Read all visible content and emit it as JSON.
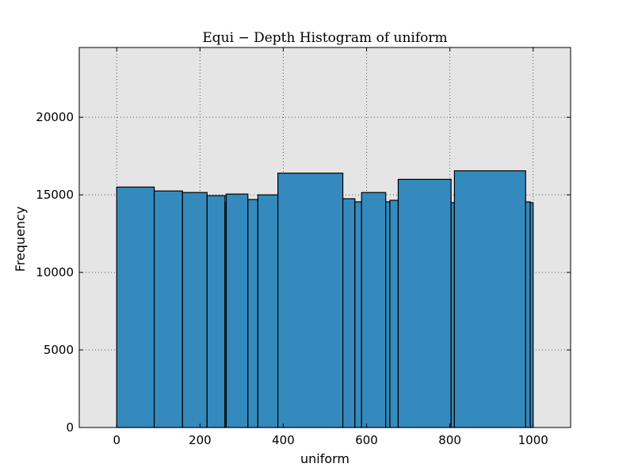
{
  "chart_data": {
    "type": "bar",
    "title": "Equi − Depth Histogram of uniform",
    "xlabel": "uniform",
    "ylabel": "Frequency",
    "xlim": [
      -90,
      1090
    ],
    "ylim": [
      0,
      24500
    ],
    "xticks": [
      0,
      200,
      400,
      600,
      800,
      1000
    ],
    "yticks": [
      0,
      5000,
      10000,
      15000,
      20000
    ],
    "grid": true,
    "bar_color": "#348abd",
    "background_color": "#e5e5e5",
    "bins": [
      {
        "x0": 0,
        "x1": 90,
        "value": 15500
      },
      {
        "x0": 90,
        "x1": 158,
        "value": 15250
      },
      {
        "x0": 158,
        "x1": 217,
        "value": 15150
      },
      {
        "x0": 217,
        "x1": 260,
        "value": 14950
      },
      {
        "x0": 260,
        "x1": 263,
        "value": 14500
      },
      {
        "x0": 263,
        "x1": 315,
        "value": 15050
      },
      {
        "x0": 315,
        "x1": 339,
        "value": 14700
      },
      {
        "x0": 339,
        "x1": 387,
        "value": 15000
      },
      {
        "x0": 387,
        "x1": 543,
        "value": 16400
      },
      {
        "x0": 543,
        "x1": 572,
        "value": 14750
      },
      {
        "x0": 572,
        "x1": 588,
        "value": 14550
      },
      {
        "x0": 588,
        "x1": 646,
        "value": 15150
      },
      {
        "x0": 646,
        "x1": 656,
        "value": 14550
      },
      {
        "x0": 656,
        "x1": 676,
        "value": 14650
      },
      {
        "x0": 676,
        "x1": 803,
        "value": 16000
      },
      {
        "x0": 803,
        "x1": 811,
        "value": 14500
      },
      {
        "x0": 811,
        "x1": 982,
        "value": 16550
      },
      {
        "x0": 982,
        "x1": 993,
        "value": 14550
      },
      {
        "x0": 993,
        "x1": 1000,
        "value": 14500
      }
    ]
  }
}
